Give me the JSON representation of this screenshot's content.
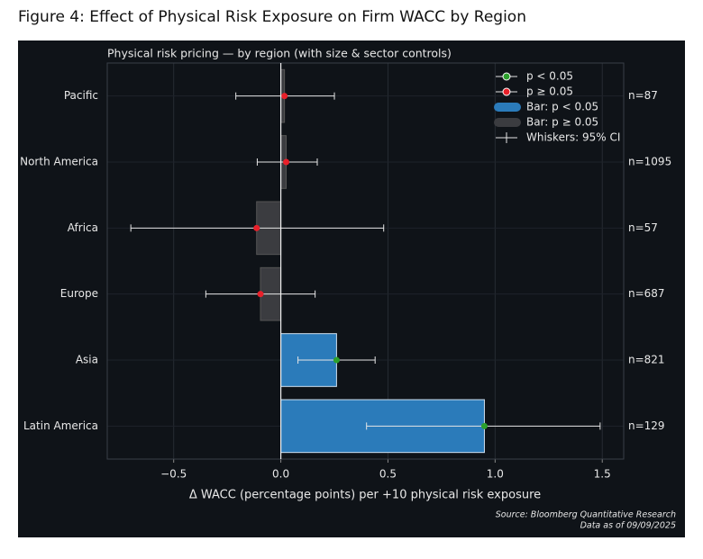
{
  "figure_title": "Figure 4: Effect of Physical Risk Exposure on Firm WACC by Region",
  "chart_data": {
    "type": "bar_errorbar",
    "title": "Physical risk pricing — by region (with size & sector controls)",
    "x_label": "Δ WACC (percentage points) per +10 physical risk exposure",
    "categories": [
      "Pacific",
      "North America",
      "Africa",
      "Europe",
      "Asia",
      "Latin America"
    ],
    "values": [
      0.017,
      0.025,
      -0.113,
      -0.095,
      0.26,
      0.95
    ],
    "ci_low": [
      -0.21,
      -0.11,
      -0.7,
      -0.35,
      0.08,
      0.4
    ],
    "ci_high": [
      0.25,
      0.17,
      0.48,
      0.16,
      0.44,
      1.49
    ],
    "significant": [
      false,
      false,
      false,
      false,
      true,
      true
    ],
    "n_labels": [
      "n=87",
      "n=1095",
      "n=57",
      "n=687",
      "n=821",
      "n=129"
    ],
    "colors": {
      "sig_bar": "#2b7bba",
      "nonsig_bar": "#3b3c40",
      "sig_point": "#2ca02c",
      "nonsig_point": "#e8202a"
    },
    "xlim": [
      -0.81,
      1.6
    ],
    "xticks": [
      {
        "value": -0.5,
        "label": "−0.5"
      },
      {
        "value": 0,
        "label": "0.0"
      },
      0.5,
      {
        "value": 1.0,
        "label": "1.0"
      },
      1.5
    ],
    "grid": true,
    "legend_position": "upper right",
    "legend": [
      {
        "label": "p < 0.05",
        "kind": "point",
        "color": "#2ca02c"
      },
      {
        "label": "p ≥ 0.05",
        "kind": "point",
        "color": "#e8202a"
      },
      {
        "label": "Bar: p < 0.05",
        "kind": "bar",
        "color": "#2b7bba"
      },
      {
        "label": "Bar: p ≥ 0.05",
        "kind": "bar",
        "color": "#3b3c40"
      },
      {
        "label": "Whiskers: 95% CI",
        "kind": "whisker",
        "color": "#e6e6e6"
      }
    ],
    "source": [
      "Source: Bloomberg Quantitative Research",
      "Data as of 09/09/2025"
    ]
  }
}
